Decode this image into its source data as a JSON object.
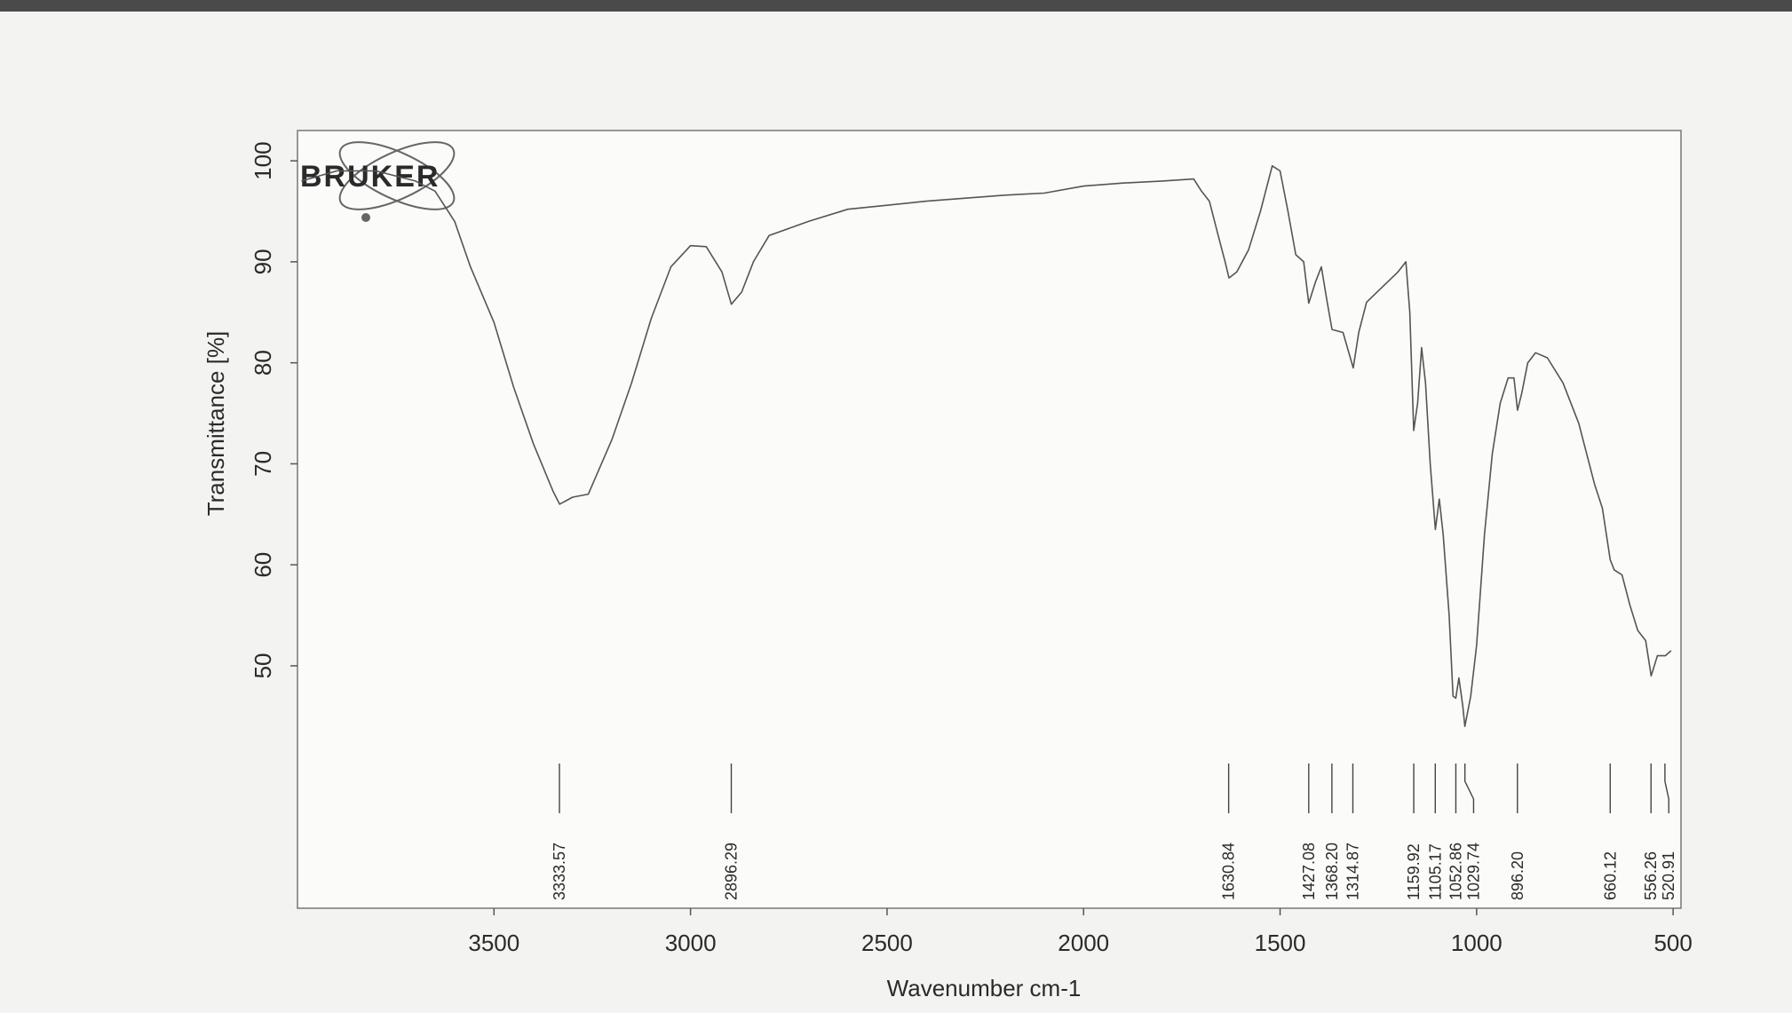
{
  "chart_data": {
    "type": "line",
    "logo": "BRUKER",
    "x_label": "Wavenumber cm-1",
    "y_label": "Transmittance [%]",
    "color": "#555555",
    "xlim": [
      4000,
      480
    ],
    "ylim": [
      26,
      103
    ],
    "xticks": [
      3500,
      3000,
      2500,
      2000,
      1500,
      1000,
      500
    ],
    "yticks": [
      50,
      60,
      70,
      80,
      90,
      100
    ],
    "x": [
      3990,
      3900,
      3800,
      3700,
      3650,
      3600,
      3560,
      3500,
      3450,
      3400,
      3350,
      3333,
      3300,
      3260,
      3200,
      3150,
      3100,
      3050,
      3000,
      2960,
      2920,
      2896,
      2870,
      2840,
      2800,
      2700,
      2600,
      2500,
      2400,
      2300,
      2200,
      2100,
      2000,
      1900,
      1800,
      1720,
      1700,
      1680,
      1660,
      1640,
      1630,
      1610,
      1580,
      1550,
      1520,
      1500,
      1480,
      1460,
      1440,
      1427,
      1410,
      1395,
      1380,
      1368,
      1340,
      1314,
      1300,
      1280,
      1240,
      1200,
      1180,
      1170,
      1160,
      1150,
      1140,
      1130,
      1118,
      1105,
      1095,
      1085,
      1070,
      1060,
      1053,
      1045,
      1035,
      1030,
      1015,
      1000,
      980,
      960,
      940,
      920,
      905,
      896,
      885,
      870,
      850,
      820,
      780,
      740,
      700,
      680,
      660,
      650,
      630,
      610,
      590,
      570,
      556,
      540,
      520,
      505
    ],
    "values": [
      98,
      99,
      99,
      98,
      97,
      94,
      89.5,
      84,
      77.6,
      72,
      67.3,
      66,
      66.7,
      67,
      72.4,
      78,
      84.4,
      89.5,
      91.6,
      91.5,
      89,
      85.8,
      87,
      90,
      92.6,
      94,
      95.2,
      95.6,
      96,
      96.3,
      96.6,
      96.8,
      97.5,
      97.8,
      98,
      98.2,
      97,
      96,
      93,
      90,
      88.4,
      89,
      91.2,
      95,
      99.5,
      99,
      95,
      90.7,
      90,
      85.9,
      88,
      89.5,
      86,
      83.3,
      83,
      79.5,
      83,
      86,
      87.5,
      89,
      90,
      85,
      73.3,
      76,
      81.5,
      78,
      70,
      63.5,
      66.5,
      63,
      55,
      47,
      46.8,
      48.8,
      46,
      44,
      47,
      52,
      63,
      71,
      76,
      78.5,
      78.5,
      75.3,
      77,
      80,
      81,
      80.5,
      78,
      74,
      68,
      65.6,
      60.5,
      59.5,
      59,
      56,
      53.5,
      52.5,
      49,
      51,
      51,
      51.5
    ],
    "peaks": {
      "values": [
        3333.57,
        2896.29,
        1630.84,
        1427.08,
        1368.2,
        1314.87,
        1159.92,
        1105.17,
        1052.86,
        1029.74,
        896.2,
        660.12,
        556.26,
        520.91
      ],
      "value_labels": [
        "3333.57",
        "2896.29",
        "1630.84",
        "1427.08",
        "1368.20",
        "1314.87",
        "1159.92",
        "1105.17",
        "1052.86",
        "1029.74",
        "896.20",
        "660.12",
        "556.26",
        "520.91"
      ]
    }
  }
}
